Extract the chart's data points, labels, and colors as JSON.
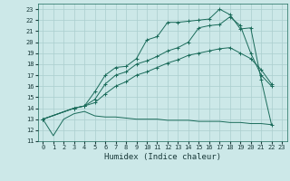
{
  "xlabel": "Humidex (Indice chaleur)",
  "bg_color": "#cce8e8",
  "grid_color": "#aacece",
  "line_color": "#1a6b5a",
  "xlim": [
    -0.5,
    23.5
  ],
  "ylim": [
    11,
    23.5
  ],
  "xticks": [
    0,
    1,
    2,
    3,
    4,
    5,
    6,
    7,
    8,
    9,
    10,
    11,
    12,
    13,
    14,
    15,
    16,
    17,
    18,
    19,
    20,
    21,
    22,
    23
  ],
  "yticks": [
    11,
    12,
    13,
    14,
    15,
    16,
    17,
    18,
    19,
    20,
    21,
    22,
    23
  ],
  "line1_x": [
    0,
    3,
    4,
    5,
    6,
    7,
    8,
    9,
    10,
    11,
    12,
    13,
    14,
    15,
    16,
    17,
    18,
    19,
    20,
    21,
    22
  ],
  "line1_y": [
    13,
    14.0,
    14.2,
    15.5,
    17.0,
    17.7,
    17.8,
    18.5,
    20.2,
    20.5,
    21.8,
    21.8,
    21.9,
    22.0,
    22.1,
    23.0,
    22.5,
    21.2,
    21.3,
    16.6,
    12.5
  ],
  "line2_x": [
    0,
    3,
    4,
    5,
    6,
    7,
    8,
    9,
    10,
    11,
    12,
    13,
    14,
    15,
    16,
    17,
    18,
    19,
    20,
    21,
    22
  ],
  "line2_y": [
    13,
    14.0,
    14.2,
    14.8,
    16.2,
    17.0,
    17.3,
    18.0,
    18.3,
    18.7,
    19.2,
    19.5,
    20.0,
    21.3,
    21.5,
    21.6,
    22.3,
    21.5,
    19.0,
    17.0,
    16.0
  ],
  "line3_x": [
    0,
    3,
    4,
    5,
    6,
    7,
    8,
    9,
    10,
    11,
    12,
    13,
    14,
    15,
    16,
    17,
    18,
    19,
    20,
    21,
    22
  ],
  "line3_y": [
    13,
    14.0,
    14.2,
    14.5,
    15.3,
    16.0,
    16.4,
    17.0,
    17.3,
    17.7,
    18.1,
    18.4,
    18.8,
    19.0,
    19.2,
    19.4,
    19.5,
    19.0,
    18.5,
    17.5,
    16.2
  ],
  "line4_x": [
    0,
    1,
    2,
    3,
    4,
    5,
    6,
    7,
    8,
    9,
    10,
    11,
    12,
    13,
    14,
    15,
    16,
    17,
    18,
    19,
    20,
    21,
    22
  ],
  "line4_y": [
    13,
    11.5,
    13.0,
    13.5,
    13.7,
    13.3,
    13.2,
    13.2,
    13.1,
    13.0,
    13.0,
    13.0,
    12.9,
    12.9,
    12.9,
    12.8,
    12.8,
    12.8,
    12.7,
    12.7,
    12.6,
    12.6,
    12.5
  ]
}
